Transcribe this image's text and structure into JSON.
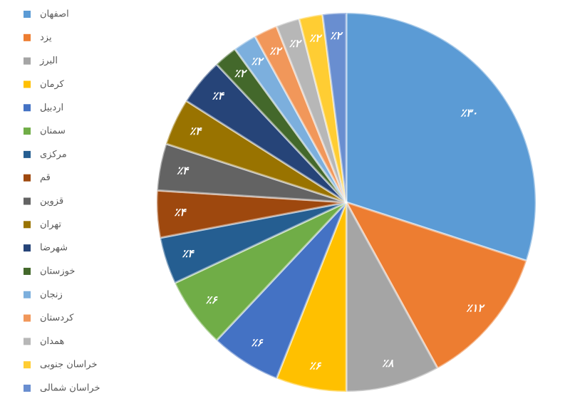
{
  "chart_data": {
    "type": "pie",
    "categories": [
      "اصفهان",
      "یزد",
      "البرز",
      "کرمان",
      "اردبیل",
      "سمنان",
      "مرکزی",
      "قم",
      "قزوین",
      "تهران",
      "شهرضا",
      "خوزستان",
      "زنجان",
      "کردستان",
      "همدان",
      "خراسان جنوبی",
      "خراسان شمالی"
    ],
    "values": [
      30,
      12,
      8,
      6,
      6,
      6,
      4,
      4,
      4,
      4,
      4,
      2,
      2,
      2,
      2,
      2,
      2
    ],
    "value_labels": [
      "٪۳۰",
      "٪۱۲",
      "٪۸",
      "٪۶",
      "٪۶",
      "٪۶",
      "٪۴",
      "٪۴",
      "٪۴",
      "٪۴",
      "٪۴",
      "٪۲",
      "٪۲",
      "٪۲",
      "٪۲",
      "٪۲",
      "٪۲"
    ],
    "colors": [
      "#5b9bd5",
      "#ed7d31",
      "#a5a5a5",
      "#ffc000",
      "#4472c4",
      "#70ad47",
      "#255e91",
      "#9e480e",
      "#636363",
      "#997300",
      "#264478",
      "#43682b",
      "#7cafdd",
      "#f1975a",
      "#b7b7b7",
      "#ffcd33",
      "#698ed0"
    ],
    "legend": "left"
  }
}
